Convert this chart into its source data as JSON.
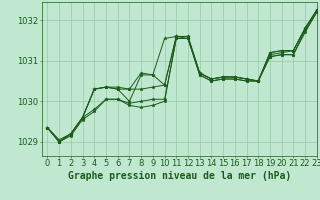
{
  "bg_color": "#c0e8d0",
  "grid_color": "#98c8a8",
  "line_color": "#1a5c1a",
  "marker_color": "#1a5c1a",
  "xlabel": "Graphe pression niveau de la mer (hPa)",
  "xlabel_fontsize": 7,
  "tick_fontsize": 6,
  "xlim": [
    -0.5,
    23
  ],
  "ylim": [
    1028.65,
    1032.45
  ],
  "yticks": [
    1029,
    1030,
    1031,
    1032
  ],
  "xticks": [
    0,
    1,
    2,
    3,
    4,
    5,
    6,
    7,
    8,
    9,
    10,
    11,
    12,
    13,
    14,
    15,
    16,
    17,
    18,
    19,
    20,
    21,
    22,
    23
  ],
  "series": [
    [
      1029.35,
      1029.0,
      1029.15,
      1029.55,
      1029.75,
      1030.05,
      1030.05,
      1029.9,
      1029.85,
      1029.9,
      1030.0,
      1031.55,
      1031.55,
      1030.65,
      1030.5,
      1030.55,
      1030.55,
      1030.5,
      1030.5,
      1031.1,
      1031.15,
      1031.15,
      1031.7,
      1032.2
    ],
    [
      1029.35,
      1029.0,
      1029.2,
      1029.6,
      1029.8,
      1030.05,
      1030.05,
      1029.95,
      1030.0,
      1030.05,
      1030.05,
      1031.55,
      1031.55,
      1030.65,
      1030.5,
      1030.55,
      1030.55,
      1030.5,
      1030.5,
      1031.1,
      1031.15,
      1031.15,
      1031.75,
      1032.2
    ],
    [
      1029.35,
      1029.0,
      1029.2,
      1029.6,
      1030.3,
      1030.35,
      1030.35,
      1030.3,
      1030.3,
      1030.35,
      1030.4,
      1031.6,
      1031.6,
      1030.7,
      1030.55,
      1030.6,
      1030.6,
      1030.55,
      1030.5,
      1031.2,
      1031.25,
      1031.25,
      1031.8,
      1032.25
    ],
    [
      1029.35,
      1029.0,
      1029.2,
      1029.6,
      1030.3,
      1030.35,
      1030.3,
      1030.3,
      1030.7,
      1030.65,
      1030.4,
      1031.6,
      1031.6,
      1030.7,
      1030.55,
      1030.6,
      1030.6,
      1030.55,
      1030.5,
      1031.2,
      1031.25,
      1031.25,
      1031.8,
      1032.25
    ],
    [
      1029.35,
      1029.05,
      1029.2,
      1029.6,
      1030.3,
      1030.35,
      1030.3,
      1030.0,
      1030.65,
      1030.65,
      1031.55,
      1031.6,
      1031.55,
      1030.7,
      1030.55,
      1030.6,
      1030.6,
      1030.55,
      1030.5,
      1031.15,
      1031.2,
      1031.25,
      1031.8,
      1032.25
    ]
  ]
}
